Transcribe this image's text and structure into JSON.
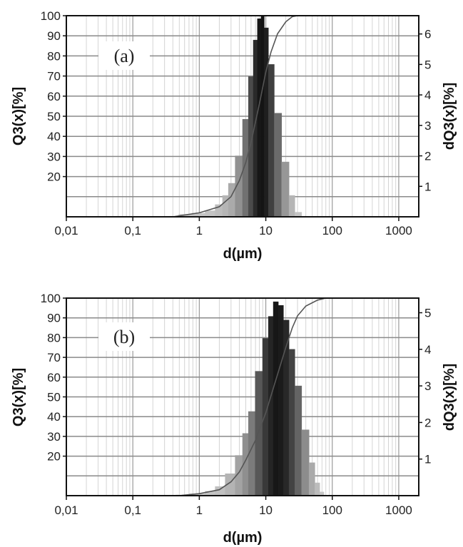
{
  "chart_data": [
    {
      "type": "histogram-with-cumulative-line",
      "panel_label": "(a)",
      "xlabel": "d(µm)",
      "ylabel_left": "Q3(x)[%]",
      "ylabel_right": "dQ3(x)[%]",
      "x_scale": "log",
      "xlim": [
        0.01,
        2000
      ],
      "ylim_left": [
        0,
        100
      ],
      "ylim_right": [
        0,
        6.6
      ],
      "x_ticks": [
        "0,01",
        "0,1",
        "1",
        "10",
        "100",
        "1000"
      ],
      "y_ticks_left": [
        "100",
        "90",
        "80",
        "70",
        "60",
        "50",
        "40",
        "30",
        "20"
      ],
      "y_ticks_right": [
        "6",
        "5",
        "4",
        "3",
        "2",
        "1"
      ],
      "grid": true,
      "histogram": {
        "x": [
          0.4,
          0.6,
          1.0,
          1.5,
          2.0,
          2.5,
          3.0,
          4.0,
          5.0,
          6.0,
          7.0,
          8.0,
          9.0,
          10.0,
          12.0,
          15.0,
          20.0,
          25.0,
          30.0,
          40.0
        ],
        "y": [
          0.02,
          0.08,
          0.12,
          0.2,
          0.4,
          0.7,
          1.1,
          2.0,
          3.2,
          4.6,
          5.8,
          6.5,
          6.6,
          6.2,
          5.0,
          3.4,
          1.8,
          0.7,
          0.15,
          0.0
        ]
      },
      "cumulative": {
        "x": [
          0.4,
          1.0,
          2.0,
          3.0,
          4.0,
          5.0,
          6.0,
          8.0,
          10.0,
          12.0,
          15.0,
          20.0,
          25.0,
          30.0,
          40.0
        ],
        "y": [
          0,
          2,
          5,
          10,
          18,
          27,
          37,
          56,
          72,
          82,
          91,
          97,
          99.5,
          100,
          100
        ]
      }
    },
    {
      "type": "histogram-with-cumulative-line",
      "panel_label": "(b)",
      "xlabel": "d(µm)",
      "ylabel_left": "Q3(x)[%]",
      "ylabel_right": "dQ3(x)[%]",
      "x_scale": "log",
      "xlim": [
        0.01,
        2000
      ],
      "ylim_left": [
        0,
        100
      ],
      "ylim_right": [
        0,
        5.4
      ],
      "x_ticks": [
        "0,01",
        "0,1",
        "1",
        "10",
        "100",
        "1000"
      ],
      "y_ticks_left": [
        "100",
        "90",
        "80",
        "70",
        "60",
        "50",
        "40",
        "30",
        "20"
      ],
      "y_ticks_right": [
        "5",
        "4",
        "3",
        "2",
        "1"
      ],
      "grid": true,
      "histogram": {
        "x": [
          0.5,
          1.0,
          1.5,
          2.0,
          3.0,
          4.0,
          5.0,
          6.0,
          8.0,
          10.0,
          12.0,
          14.0,
          17.0,
          20.0,
          25.0,
          30.0,
          40.0,
          50.0,
          60.0,
          70.0,
          80.0
        ],
        "y": [
          0.02,
          0.05,
          0.12,
          0.25,
          0.6,
          1.1,
          1.7,
          2.3,
          3.4,
          4.3,
          4.9,
          5.3,
          5.2,
          4.8,
          4.0,
          3.0,
          1.8,
          0.9,
          0.35,
          0.1,
          0.0
        ]
      },
      "cumulative": {
        "x": [
          0.5,
          1.0,
          2.0,
          3.0,
          4.0,
          5.0,
          7.0,
          10.0,
          14.0,
          20.0,
          25.0,
          30.0,
          40.0,
          60.0,
          80.0,
          100.0
        ],
        "y": [
          0,
          1,
          3,
          7,
          12,
          18,
          28,
          42,
          58,
          75,
          85,
          91,
          96,
          99,
          100,
          100
        ]
      }
    }
  ]
}
